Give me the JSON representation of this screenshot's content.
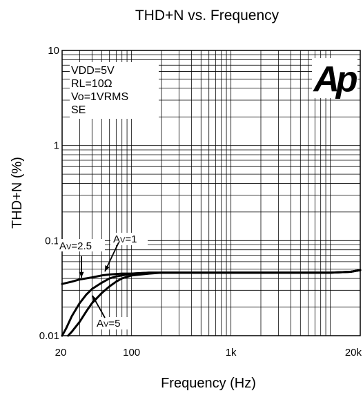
{
  "chart_data": {
    "type": "line",
    "title": "THD+N vs. Frequency",
    "xlabel": "Frequency (Hz)",
    "ylabel": "THD+N (%)",
    "xscale": "log",
    "yscale": "log",
    "xlim": [
      20,
      20000
    ],
    "ylim": [
      0.01,
      10
    ],
    "x_tick_labels": [
      "20",
      "100",
      "1k",
      "20k"
    ],
    "y_tick_labels": [
      "0.01",
      "0.1",
      "1",
      "10"
    ],
    "grid": true,
    "conditions": [
      "VDD=5V",
      "RL=10Ω",
      "Vo=1VRMS",
      "SE"
    ],
    "logo": "Ap",
    "series": [
      {
        "name": "AV=1",
        "x": [
          20,
          25,
          30,
          40,
          50,
          60,
          80,
          100,
          150,
          200,
          500,
          1000,
          5000,
          10000,
          16000,
          20000
        ],
        "y": [
          0.035,
          0.037,
          0.039,
          0.041,
          0.043,
          0.044,
          0.045,
          0.045,
          0.046,
          0.046,
          0.046,
          0.046,
          0.046,
          0.046,
          0.047,
          0.049
        ]
      },
      {
        "name": "AV=2.5",
        "x": [
          20,
          22,
          25,
          30,
          35,
          40,
          50,
          60,
          70,
          80,
          100,
          150,
          200,
          1000,
          5000,
          10000,
          16000,
          20000
        ],
        "y": [
          0.01,
          0.012,
          0.016,
          0.022,
          0.027,
          0.031,
          0.036,
          0.04,
          0.042,
          0.043,
          0.045,
          0.046,
          0.046,
          0.046,
          0.046,
          0.046,
          0.047,
          0.049
        ]
      },
      {
        "name": "AV=5",
        "x": [
          23,
          25,
          30,
          35,
          40,
          50,
          60,
          70,
          80,
          100,
          150,
          200,
          1000,
          5000,
          10000,
          16000,
          20000
        ],
        "y": [
          0.01,
          0.011,
          0.014,
          0.018,
          0.022,
          0.028,
          0.033,
          0.037,
          0.04,
          0.043,
          0.045,
          0.046,
          0.046,
          0.046,
          0.046,
          0.047,
          0.049
        ]
      }
    ],
    "annotations": [
      {
        "text": "AV=1",
        "target_x": 40,
        "target_y": 0.041
      },
      {
        "text": "AV=2.5",
        "target_x": 30,
        "target_y": 0.031
      },
      {
        "text": "AV=5",
        "target_x": 35,
        "target_y": 0.02
      }
    ]
  }
}
